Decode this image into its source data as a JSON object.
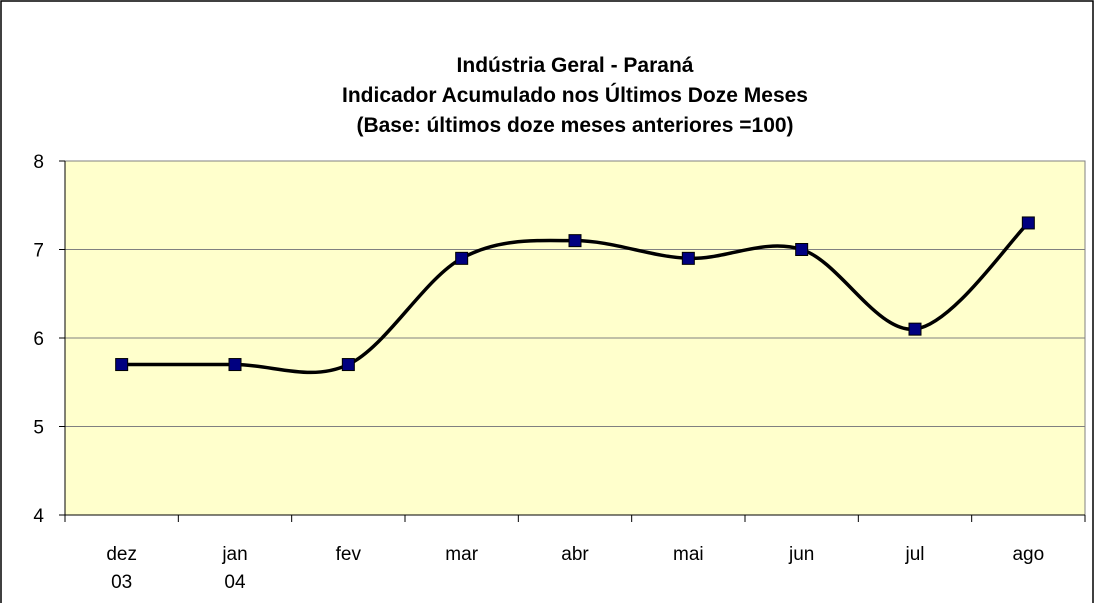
{
  "chart_data": {
    "type": "line",
    "title": [
      "Indústria Geral - Paraná",
      "Indicador Acumulado nos Últimos Doze Meses",
      "(Base: últimos doze meses anteriores =100)"
    ],
    "categories": [
      "dez 03",
      "jan 04",
      "fev",
      "mar",
      "abr",
      "mai",
      "jun",
      "jul",
      "ago"
    ],
    "values": [
      5.7,
      5.7,
      5.7,
      6.9,
      7.1,
      6.9,
      7.0,
      6.1,
      7.3
    ],
    "color": "#000000",
    "marker_color": "#000080",
    "ylim": [
      4,
      8
    ],
    "yticks": [
      4,
      5,
      6,
      7,
      8
    ],
    "grid": true,
    "smooth": true
  }
}
